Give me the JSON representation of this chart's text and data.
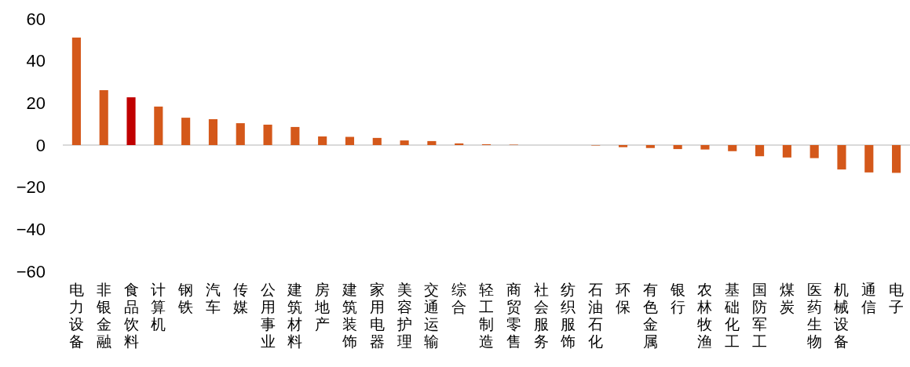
{
  "chart_data": {
    "type": "bar",
    "categories": [
      "电力设备",
      "非银金融",
      "食品饮料",
      "计算机",
      "钢铁",
      "汽车",
      "传媒",
      "公用事业",
      "建筑材料",
      "房地产",
      "建筑装饰",
      "家用电器",
      "美容护理",
      "交通运输",
      "综合",
      "轻工制造",
      "商贸零售",
      "社会服务",
      "纺织服饰",
      "石油石化",
      "环保",
      "有色金属",
      "银行",
      "农林牧渔",
      "基础化工",
      "国防军工",
      "煤炭",
      "医药生物",
      "机械设备",
      "通信",
      "电子"
    ],
    "values": [
      51.1,
      26.1,
      22.7,
      18.3,
      13.0,
      12.3,
      10.4,
      9.7,
      8.6,
      4.1,
      3.9,
      3.4,
      2.2,
      1.9,
      0.8,
      0.4,
      0.2,
      0,
      0,
      -0.2,
      -1.0,
      -1.4,
      -1.9,
      -2.1,
      -2.9,
      -5.3,
      -5.9,
      -6.2,
      -11.6,
      -13.0,
      -13.2
    ],
    "colors": [
      "#d4581a",
      "#d4581a",
      "#c00000",
      "#d4581a",
      "#d4581a",
      "#d4581a",
      "#d4581a",
      "#d4581a",
      "#d4581a",
      "#d4581a",
      "#d4581a",
      "#d4581a",
      "#d4581a",
      "#d4581a",
      "#d4581a",
      "#d4581a",
      "#d4581a",
      "#d4581a",
      "#d4581a",
      "#d4581a",
      "#d4581a",
      "#d4581a",
      "#d4581a",
      "#d4581a",
      "#d4581a",
      "#d4581a",
      "#d4581a",
      "#d4581a",
      "#d4581a",
      "#d4581a",
      "#d4581a"
    ],
    "ylim": [
      -60,
      60
    ],
    "yticks": [
      -60,
      -40,
      -20,
      0,
      20,
      40,
      60
    ]
  }
}
